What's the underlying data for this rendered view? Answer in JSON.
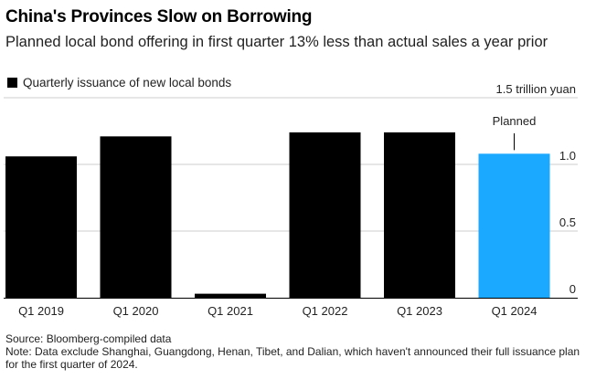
{
  "header": {
    "title": "China's Provinces Slow on Borrowing",
    "subtitle": "Planned local bond offering in first quarter 13% less than actual sales a year prior"
  },
  "legend": {
    "label": "Quarterly issuance of new local bonds"
  },
  "footer": {
    "source": "Source: Bloomberg-compiled data",
    "note": "Note: Data exclude Shanghai, Guangdong, Henan, Tibet, and Dalian, which haven't announced their full issuance plan for the first quarter of 2024."
  },
  "colors": {
    "actual": "#000000",
    "planned": "#1aa9ff",
    "grid": "#cccccc"
  },
  "chart_data": {
    "type": "bar",
    "categories": [
      "Q1 2019",
      "Q1 2020",
      "Q1 2021",
      "Q1 2022",
      "Q1 2023",
      "Q1 2024"
    ],
    "values": [
      1.06,
      1.21,
      0.03,
      1.24,
      1.24,
      1.08
    ],
    "planned": [
      false,
      false,
      false,
      false,
      false,
      true
    ],
    "ylim": [
      0,
      1.5
    ],
    "yticks": [
      {
        "value": 0,
        "label": "0"
      },
      {
        "value": 0.5,
        "label": "0.5"
      },
      {
        "value": 1.0,
        "label": "1.0"
      },
      {
        "value": 1.5,
        "label": "1.5 trillion yuan"
      }
    ],
    "annotation": {
      "text": "Planned",
      "category": "Q1 2024"
    },
    "grid": true
  }
}
